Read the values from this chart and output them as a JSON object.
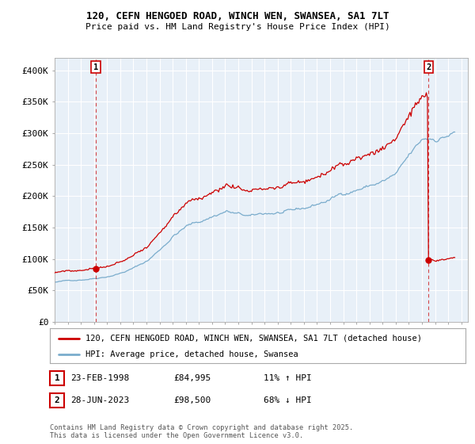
{
  "title1": "120, CEFN HENGOED ROAD, WINCH WEN, SWANSEA, SA1 7LT",
  "title2": "Price paid vs. HM Land Registry's House Price Index (HPI)",
  "red_label": "120, CEFN HENGOED ROAD, WINCH WEN, SWANSEA, SA1 7LT (detached house)",
  "blue_label": "HPI: Average price, detached house, Swansea",
  "point1_date": "23-FEB-1998",
  "point1_price": "£84,995",
  "point1_hpi": "11% ↑ HPI",
  "point1_year": 1998.13,
  "point1_value": 84995,
  "point2_date": "28-JUN-2023",
  "point2_price": "£98,500",
  "point2_hpi": "68% ↓ HPI",
  "point2_year": 2023.5,
  "point2_value": 98500,
  "footnote": "Contains HM Land Registry data © Crown copyright and database right 2025.\nThis data is licensed under the Open Government Licence v3.0.",
  "red_color": "#cc0000",
  "blue_color": "#7aaccc",
  "plot_bg": "#e8f0f8",
  "background_color": "#ffffff",
  "grid_color": "#ffffff",
  "ylim": [
    0,
    420000
  ],
  "yticks": [
    0,
    50000,
    100000,
    150000,
    200000,
    250000,
    300000,
    350000,
    400000
  ],
  "ytick_labels": [
    "£0",
    "£50K",
    "£100K",
    "£150K",
    "£200K",
    "£250K",
    "£300K",
    "£350K",
    "£400K"
  ],
  "xlim_start": 1995.0,
  "xlim_end": 2026.5
}
